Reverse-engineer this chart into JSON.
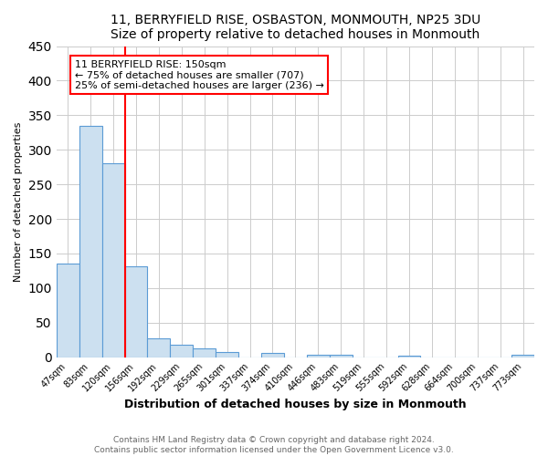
{
  "title1": "11, BERRYFIELD RISE, OSBASTON, MONMOUTH, NP25 3DU",
  "title2": "Size of property relative to detached houses in Monmouth",
  "xlabel": "Distribution of detached houses by size in Monmouth",
  "ylabel": "Number of detached properties",
  "bin_labels": [
    "47sqm",
    "83sqm",
    "120sqm",
    "156sqm",
    "192sqm",
    "229sqm",
    "265sqm",
    "301sqm",
    "337sqm",
    "374sqm",
    "410sqm",
    "446sqm",
    "483sqm",
    "519sqm",
    "555sqm",
    "592sqm",
    "628sqm",
    "664sqm",
    "700sqm",
    "737sqm",
    "773sqm"
  ],
  "bar_heights": [
    135,
    335,
    281,
    132,
    27,
    18,
    13,
    7,
    0,
    6,
    0,
    4,
    3,
    0,
    0,
    2,
    0,
    0,
    0,
    0,
    4
  ],
  "bar_color": "#cce0f0",
  "bar_edge_color": "#5b9bd5",
  "vline_color": "red",
  "vline_index": 3,
  "annotation_line1": "11 BERRYFIELD RISE: 150sqm",
  "annotation_line2": "← 75% of detached houses are smaller (707)",
  "annotation_line3": "25% of semi-detached houses are larger (236) →",
  "annotation_box_facecolor": "white",
  "annotation_box_edgecolor": "red",
  "ylim": [
    0,
    450
  ],
  "yticks": [
    0,
    50,
    100,
    150,
    200,
    250,
    300,
    350,
    400,
    450
  ],
  "bg_color": "#ffffff",
  "plot_bg_color": "#ffffff",
  "grid_color": "#cccccc",
  "footer_line1": "Contains HM Land Registry data © Crown copyright and database right 2024.",
  "footer_line2": "Contains public sector information licensed under the Open Government Licence v3.0.",
  "title_fontsize": 10,
  "xlabel_fontsize": 9,
  "ylabel_fontsize": 8,
  "tick_fontsize": 7,
  "annotation_fontsize": 8,
  "footer_fontsize": 6.5,
  "footer_color": "#666666"
}
